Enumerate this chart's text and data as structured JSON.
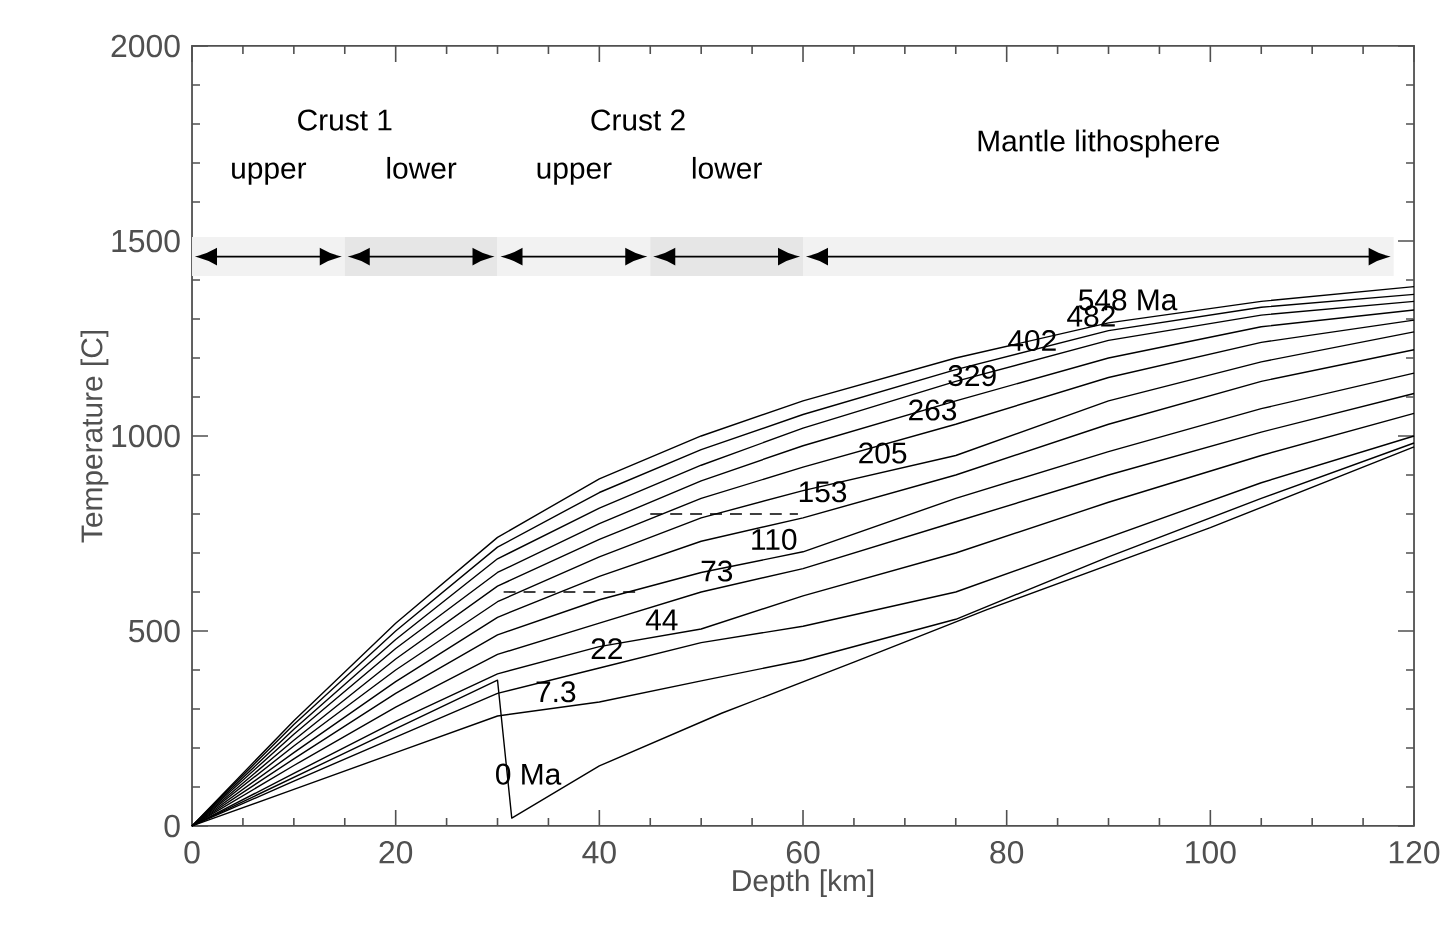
{
  "chart_data": {
    "type": "line",
    "xlabel": "Depth [km]",
    "ylabel": "Temperature [C]",
    "xlim": [
      0,
      120
    ],
    "ylim": [
      0,
      2000
    ],
    "xticks": [
      0,
      20,
      40,
      60,
      80,
      100,
      120
    ],
    "yticks": [
      0,
      500,
      1000,
      1500,
      2000
    ],
    "grid": false,
    "series": [
      {
        "name": "0 Ma",
        "color": "#000000",
        "x": [
          0,
          30,
          31.4,
          40,
          52,
          65,
          78,
          100,
          120
        ],
        "values": [
          0,
          374,
          20,
          154,
          289,
          420,
          554,
          765,
          972
        ]
      },
      {
        "name": "7.3",
        "color": "#000000",
        "x": [
          0,
          10,
          20,
          30,
          40,
          50,
          60,
          75,
          90,
          105,
          120
        ],
        "values": [
          0,
          94,
          188,
          282,
          318,
          372,
          425,
          530,
          690,
          840,
          982
        ]
      },
      {
        "name": "22",
        "color": "#000000",
        "x": [
          0,
          10,
          20,
          30,
          40,
          50,
          60,
          75,
          90,
          105,
          120
        ],
        "values": [
          0,
          115,
          228,
          340,
          405,
          470,
          512,
          600,
          740,
          880,
          1000
        ]
      },
      {
        "name": "44",
        "color": "#000000",
        "x": [
          0,
          10,
          20,
          30,
          40,
          50,
          60,
          75,
          90,
          105,
          120
        ],
        "values": [
          0,
          135,
          268,
          390,
          460,
          505,
          590,
          700,
          830,
          950,
          1058
        ]
      },
      {
        "name": "73",
        "color": "#000000",
        "x": [
          0,
          10,
          20,
          30,
          40,
          50,
          60,
          75,
          90,
          105,
          120
        ],
        "values": [
          0,
          155,
          305,
          440,
          520,
          600,
          660,
          780,
          900,
          1010,
          1109
        ]
      },
      {
        "name": "110",
        "color": "#000000",
        "x": [
          0,
          10,
          20,
          30,
          40,
          50,
          60,
          75,
          90,
          105,
          120
        ],
        "values": [
          0,
          172,
          340,
          490,
          580,
          650,
          703,
          840,
          960,
          1070,
          1161
        ]
      },
      {
        "name": "153",
        "color": "#000000",
        "x": [
          0,
          10,
          20,
          30,
          40,
          50,
          60,
          75,
          90,
          105,
          120
        ],
        "values": [
          0,
          188,
          370,
          535,
          640,
          730,
          790,
          900,
          1030,
          1140,
          1221
        ]
      },
      {
        "name": "205",
        "color": "#000000",
        "x": [
          0,
          10,
          20,
          30,
          40,
          50,
          60,
          75,
          90,
          105,
          120
        ],
        "values": [
          0,
          205,
          400,
          575,
          690,
          790,
          860,
          950,
          1090,
          1190,
          1267
        ]
      },
      {
        "name": "263",
        "color": "#000000",
        "x": [
          0,
          10,
          20,
          30,
          40,
          50,
          60,
          75,
          90,
          105,
          120
        ],
        "values": [
          0,
          220,
          428,
          615,
          735,
          840,
          920,
          1030,
          1150,
          1240,
          1297
        ]
      },
      {
        "name": "329",
        "color": "#000000",
        "x": [
          0,
          10,
          20,
          30,
          40,
          50,
          60,
          75,
          90,
          105,
          120
        ],
        "values": [
          0,
          235,
          455,
          650,
          775,
          885,
          975,
          1090,
          1200,
          1280,
          1323
        ]
      },
      {
        "name": "402",
        "color": "#000000",
        "x": [
          0,
          10,
          20,
          30,
          40,
          50,
          60,
          75,
          90,
          105,
          120
        ],
        "values": [
          0,
          248,
          478,
          685,
          815,
          925,
          1020,
          1140,
          1245,
          1310,
          1345
        ]
      },
      {
        "name": "482",
        "color": "#000000",
        "x": [
          0,
          10,
          20,
          30,
          40,
          50,
          60,
          75,
          90,
          105,
          120
        ],
        "values": [
          0,
          260,
          500,
          715,
          855,
          965,
          1055,
          1170,
          1270,
          1330,
          1363
        ]
      },
      {
        "name": "548 Ma",
        "color": "#000000",
        "x": [
          0,
          10,
          20,
          30,
          40,
          50,
          60,
          75,
          90,
          105,
          120
        ],
        "values": [
          0,
          270,
          520,
          740,
          890,
          1000,
          1090,
          1200,
          1290,
          1345,
          1383
        ]
      },
      {
        "color": "#000000",
        "line_style": "dashed",
        "x": [
          30.6,
          44
        ],
        "values": [
          600,
          600
        ]
      },
      {
        "color": "#000000",
        "line_style": "dashed",
        "x": [
          45,
          59.5
        ],
        "values": [
          800,
          800
        ]
      }
    ],
    "bands": [
      {
        "axis": "x",
        "from": 0,
        "to": 15,
        "label": "upper",
        "color": "#f2f2f2"
      },
      {
        "axis": "x",
        "from": 15,
        "to": 30,
        "label": "lower",
        "color": "#e6e6e6"
      },
      {
        "axis": "x",
        "from": 30,
        "to": 45,
        "label": "upper",
        "color": "#f2f2f2"
      },
      {
        "axis": "x",
        "from": 45,
        "to": 60,
        "label": "lower",
        "color": "#e6e6e6"
      },
      {
        "axis": "x",
        "from": 60,
        "to": 118,
        "label": "Mantle lithosphere",
        "color": "#f2f2f2"
      }
    ],
    "annotations": [
      "Crust 1",
      "Crust 2"
    ]
  }
}
